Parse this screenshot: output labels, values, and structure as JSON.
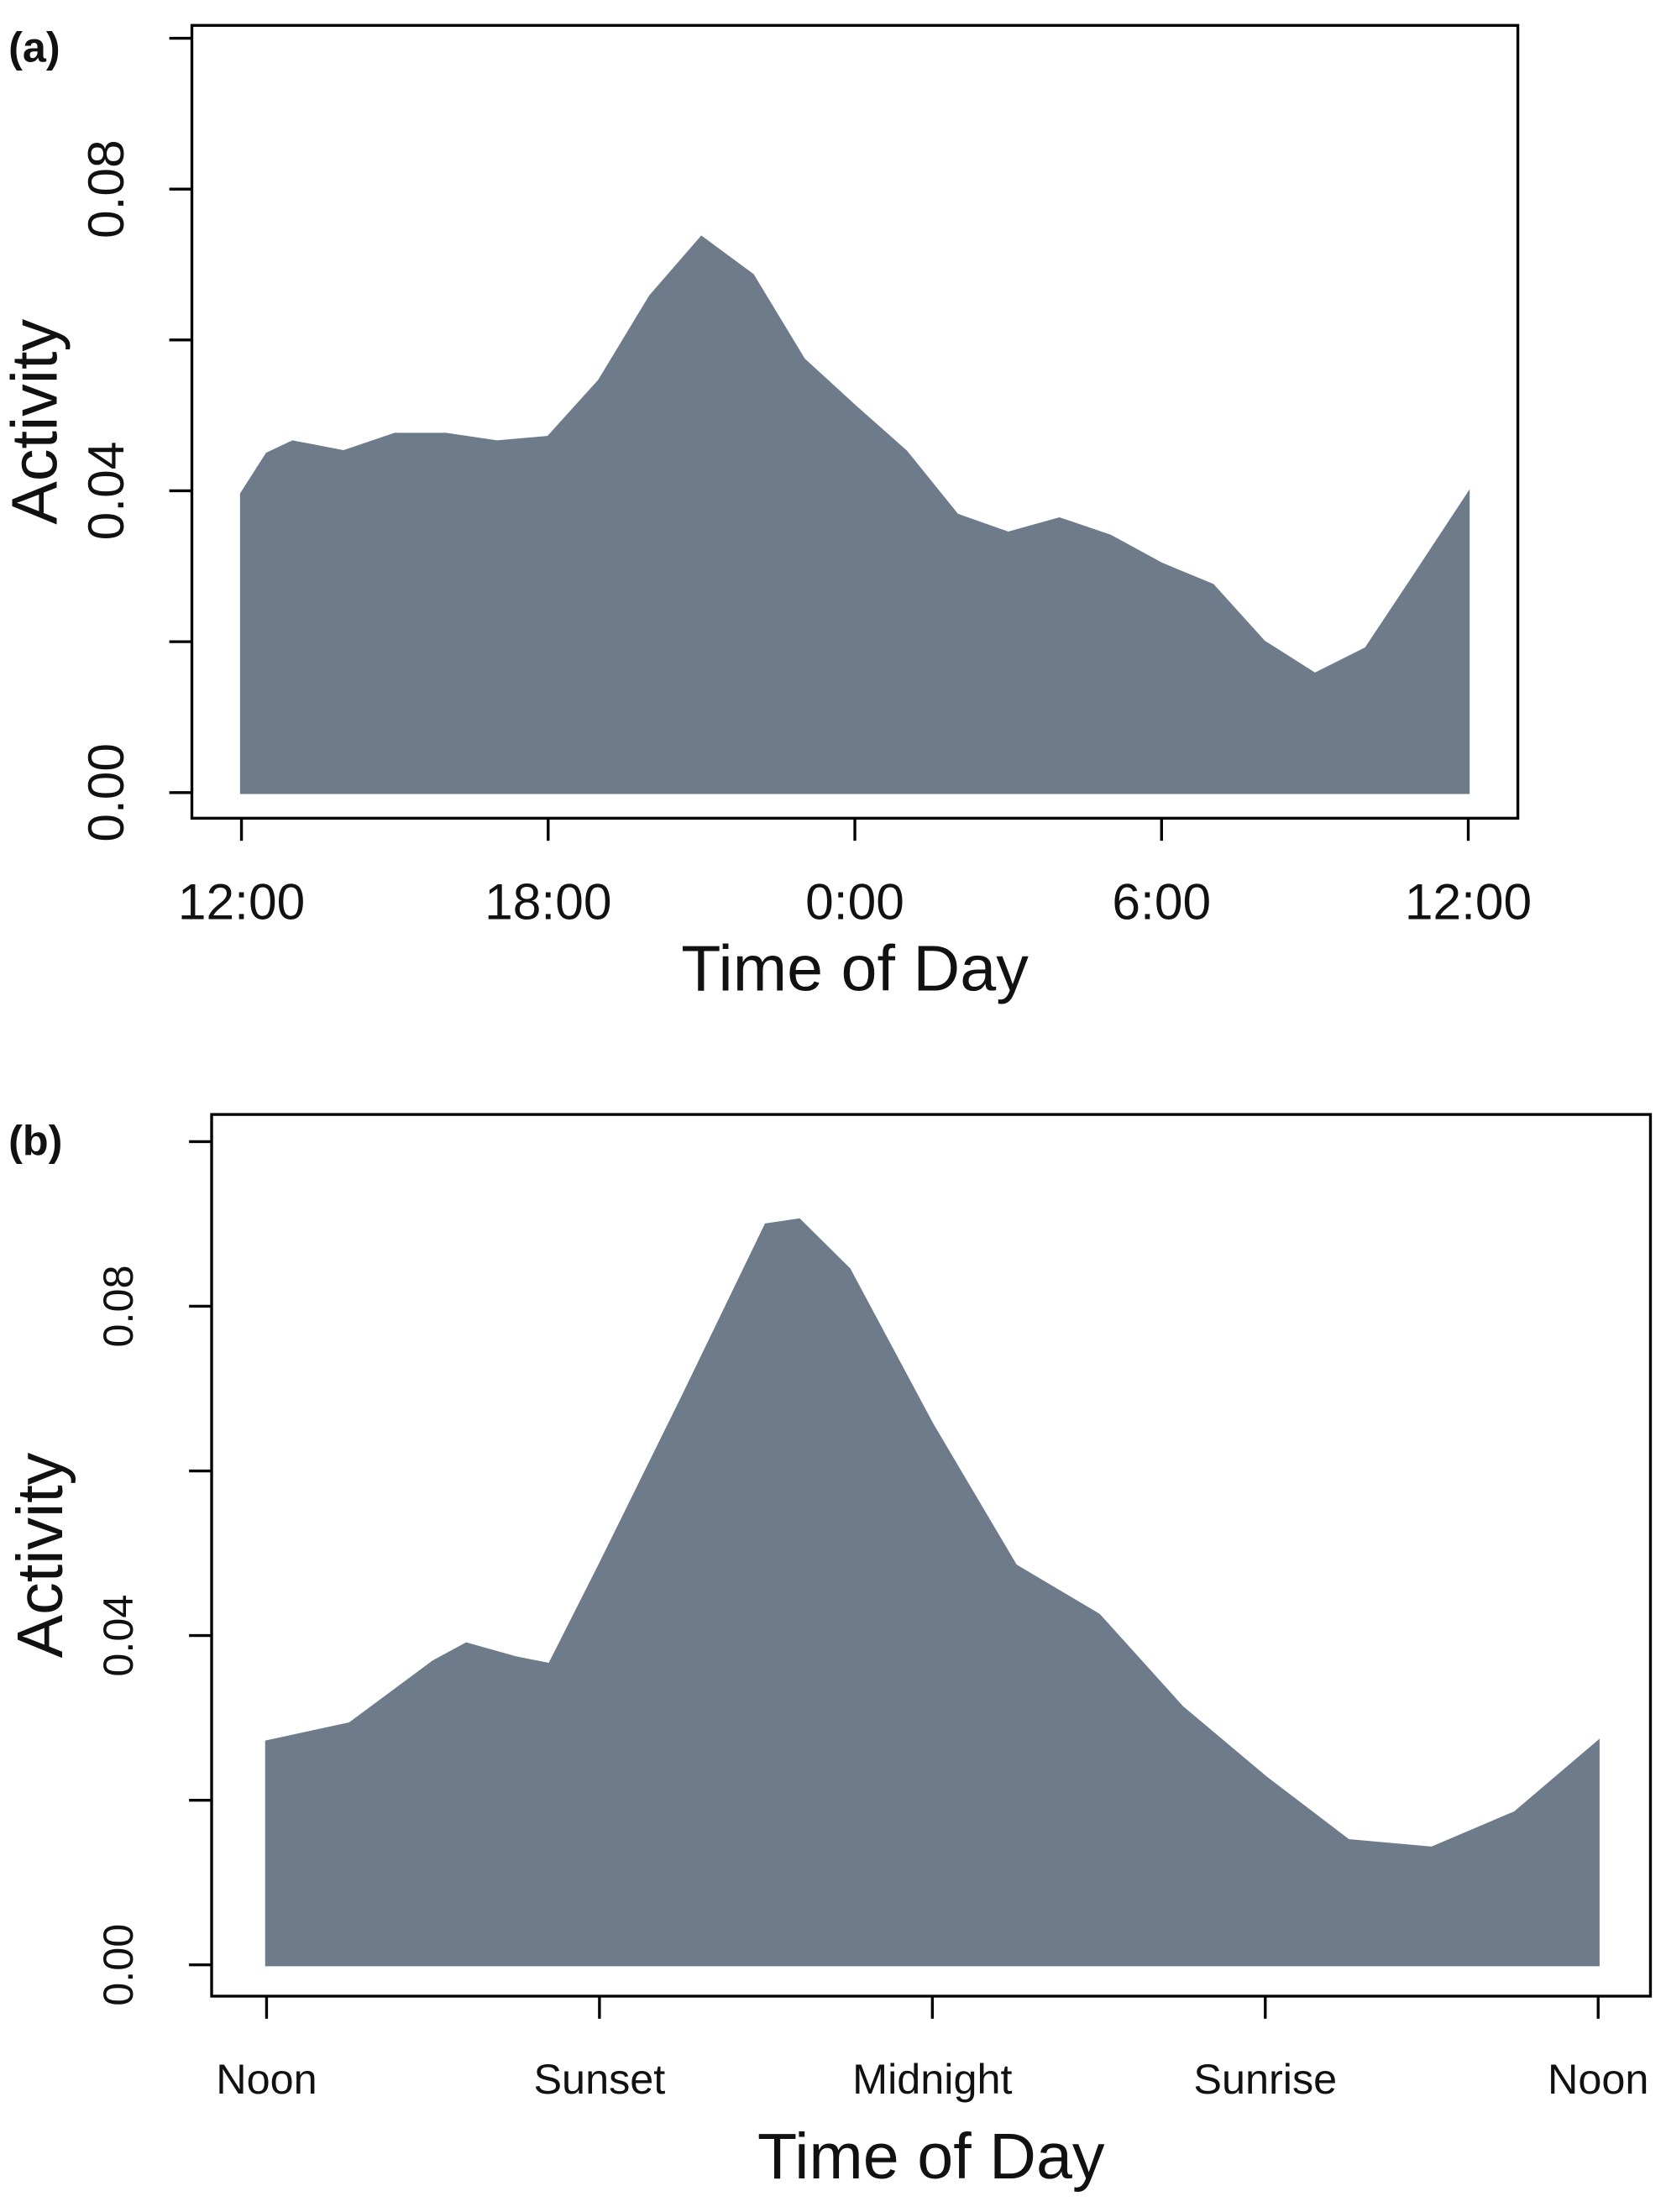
{
  "chart_data": [
    {
      "type": "area",
      "panel": "(a)",
      "xlabel": "Time of Day",
      "ylabel": "Activity",
      "color": "#6d7b8a",
      "x": [
        12,
        12.5,
        13,
        14,
        15,
        16,
        17,
        18,
        19,
        20,
        21,
        22,
        23,
        24,
        25,
        26,
        27,
        28,
        29,
        30,
        31,
        32,
        33,
        34,
        35,
        36
      ],
      "values": [
        0.0396,
        0.0449,
        0.0465,
        0.0452,
        0.0475,
        0.0475,
        0.0465,
        0.0471,
        0.0546,
        0.0658,
        0.0736,
        0.0686,
        0.0574,
        0.0512,
        0.0452,
        0.0368,
        0.0344,
        0.0363,
        0.034,
        0.0303,
        0.0275,
        0.02,
        0.0157,
        0.0191,
        0.0293,
        0.0396
      ],
      "xlim": [
        11.03,
        36.97
      ],
      "xticks": [
        {
          "value": 12,
          "label": "12:00"
        },
        {
          "value": 18,
          "label": "18:00"
        },
        {
          "value": 24,
          "label": "0:00"
        },
        {
          "value": 30,
          "label": "6:00"
        },
        {
          "value": 36,
          "label": "12:00"
        }
      ],
      "ylim": [
        -0.0034,
        0.1017
      ],
      "yticks": [
        {
          "value": 0,
          "label": "0.00"
        },
        {
          "value": 0.04,
          "label": "0.04"
        },
        {
          "value": 0.08,
          "label": "0.08"
        }
      ],
      "yminor_ticks": [
        0.02,
        0.06,
        0.1
      ]
    },
    {
      "type": "area",
      "panel": "(b)",
      "xlabel": "Time of Day",
      "ylabel": "Activity",
      "color": "#6d7b8a",
      "x": [
        0,
        0.25,
        0.5,
        0.6,
        0.75,
        0.85,
        1,
        1.25,
        1.5,
        1.6,
        1.75,
        2,
        2.25,
        2.5,
        2.75,
        3,
        3.25,
        3.5,
        3.75,
        4
      ],
      "values": [
        0.0271,
        0.0293,
        0.0368,
        0.039,
        0.0373,
        0.0365,
        0.0485,
        0.069,
        0.0899,
        0.0905,
        0.0845,
        0.0656,
        0.0485,
        0.0425,
        0.0313,
        0.0228,
        0.0151,
        0.0142,
        0.0185,
        0.0271
      ],
      "xlim": [
        -0.165,
        4.157
      ],
      "xticks": [
        {
          "value": 0,
          "label": "Noon"
        },
        {
          "value": 1,
          "label": "Sunset"
        },
        {
          "value": 2,
          "label": "Midnight"
        },
        {
          "value": 3,
          "label": "Sunrise"
        },
        {
          "value": 4,
          "label": "Noon"
        }
      ],
      "ylim": [
        -0.0038,
        0.1033
      ],
      "yticks": [
        {
          "value": 0,
          "label": "0.00"
        },
        {
          "value": 0.04,
          "label": "0.04"
        },
        {
          "value": 0.08,
          "label": "0.08"
        }
      ],
      "yminor_ticks": [
        0.02,
        0.06,
        0.1
      ]
    }
  ]
}
